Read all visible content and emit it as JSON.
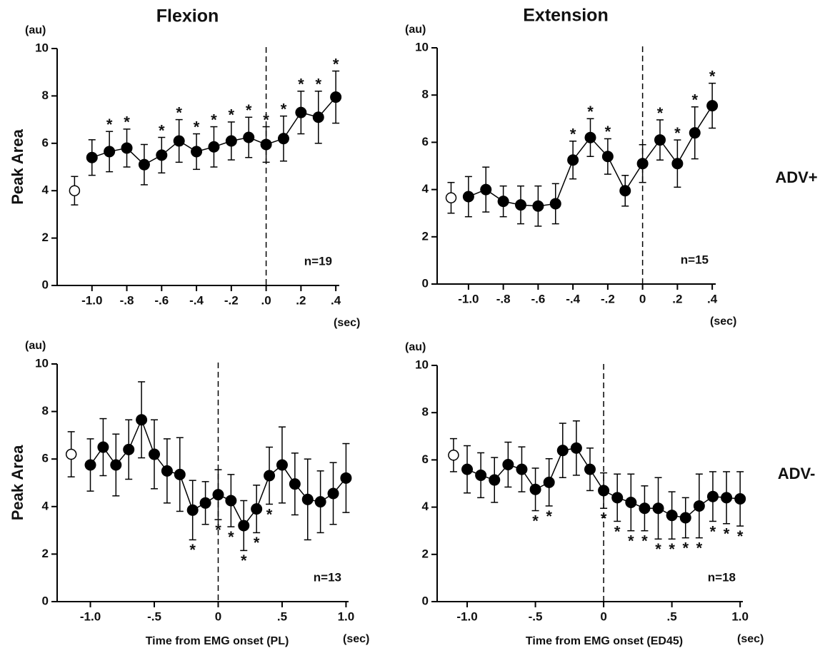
{
  "chart_data": [
    {
      "type": "errorbar-line",
      "title": "Flexion",
      "ylabel": "Peak Area",
      "yunit": "(au)",
      "xunit": "(sec)",
      "n_label": "n=19",
      "x": [
        -1.0,
        -0.9,
        -0.8,
        -0.7,
        -0.6,
        -0.5,
        -0.4,
        -0.3,
        -0.2,
        -0.1,
        0,
        0.1,
        0.2,
        0.3,
        0.4
      ],
      "values": [
        5.4,
        5.65,
        5.8,
        5.1,
        5.5,
        6.1,
        5.65,
        5.85,
        6.1,
        6.25,
        5.95,
        6.2,
        7.3,
        7.1,
        7.95
      ],
      "errors": [
        0.75,
        0.85,
        0.8,
        0.85,
        0.75,
        0.9,
        0.75,
        0.85,
        0.8,
        0.85,
        0.75,
        0.95,
        0.9,
        1.1,
        1.1
      ],
      "baseline": {
        "x": -1.1,
        "value": 4.0,
        "error": 0.6
      },
      "annotations": [
        {
          "x": -0.9,
          "text": "*"
        },
        {
          "x": -0.8,
          "text": "*"
        },
        {
          "x": -0.6,
          "text": "*"
        },
        {
          "x": -0.5,
          "text": "*"
        },
        {
          "x": -0.4,
          "text": "*"
        },
        {
          "x": -0.3,
          "text": "*"
        },
        {
          "x": -0.2,
          "text": "*"
        },
        {
          "x": -0.1,
          "text": "*"
        },
        {
          "x": 0,
          "text": "*"
        },
        {
          "x": 0.1,
          "text": "*"
        },
        {
          "x": 0.2,
          "text": "*"
        },
        {
          "x": 0.3,
          "text": "*"
        },
        {
          "x": 0.4,
          "text": "*"
        }
      ],
      "annotation_side": "above",
      "vline": 0,
      "xlim": [
        -1.2,
        0.42
      ],
      "ylim": [
        0,
        10
      ],
      "xticks": [
        {
          "value": -1.0,
          "label": "-1.0"
        },
        {
          "value": -0.8,
          "label": "-.8"
        },
        {
          "value": -0.6,
          "label": "-.6"
        },
        {
          "value": -0.4,
          "label": "-.4"
        },
        {
          "value": -0.2,
          "label": "-.2"
        },
        {
          "value": 0,
          "label": ".0"
        },
        {
          "value": 0.2,
          "label": ".2"
        },
        {
          "value": 0.4,
          "label": ".4"
        }
      ],
      "yticks": [
        0,
        2,
        4,
        6,
        8,
        10
      ]
    },
    {
      "type": "errorbar-line",
      "title": "Extension",
      "yunit": "(au)",
      "xunit": "(sec)",
      "n_label": "n=15",
      "x": [
        -1.0,
        -0.9,
        -0.8,
        -0.7,
        -0.6,
        -0.5,
        -0.4,
        -0.3,
        -0.2,
        -0.1,
        0,
        0.1,
        0.2,
        0.3,
        0.4
      ],
      "values": [
        3.7,
        4.0,
        3.5,
        3.35,
        3.3,
        3.4,
        5.25,
        6.2,
        5.4,
        3.95,
        5.1,
        6.1,
        5.1,
        6.4,
        7.55
      ],
      "errors": [
        0.85,
        0.95,
        0.65,
        0.8,
        0.85,
        0.85,
        0.8,
        0.8,
        0.75,
        0.65,
        0.8,
        0.85,
        1.0,
        1.1,
        0.95
      ],
      "baseline": {
        "x": -1.1,
        "value": 3.65,
        "error": 0.65
      },
      "annotations": [
        {
          "x": -0.4,
          "text": "*"
        },
        {
          "x": -0.3,
          "text": "*"
        },
        {
          "x": -0.2,
          "text": "*"
        },
        {
          "x": 0.1,
          "text": "*"
        },
        {
          "x": 0.2,
          "text": "*"
        },
        {
          "x": 0.3,
          "text": "*"
        },
        {
          "x": 0.4,
          "text": "*"
        }
      ],
      "annotation_side": "above",
      "vline": 0,
      "xlim": [
        -1.18,
        0.42
      ],
      "ylim": [
        0,
        10
      ],
      "xticks": [
        {
          "value": -1.0,
          "label": "-1.0"
        },
        {
          "value": -0.8,
          "label": "-.8"
        },
        {
          "value": -0.6,
          "label": "-.6"
        },
        {
          "value": -0.4,
          "label": "-.4"
        },
        {
          "value": -0.2,
          "label": "-.2"
        },
        0,
        {
          "value": 0.2,
          "label": ".2"
        },
        {
          "value": 0.4,
          "label": ".4"
        }
      ],
      "yticks": [
        0,
        2,
        4,
        6,
        8,
        10
      ]
    },
    {
      "type": "errorbar-line",
      "ylabel": "Peak Area",
      "yunit": "(au)",
      "xunit": "(sec)",
      "n_label": "n=13",
      "xlabel": "Time from EMG onset (PL)",
      "x": [
        -1.0,
        -0.9,
        -0.8,
        -0.7,
        -0.6,
        -0.5,
        -0.4,
        -0.3,
        -0.2,
        -0.1,
        0,
        0.1,
        0.2,
        0.3,
        0.4,
        0.5,
        0.6,
        0.7,
        0.8,
        0.9,
        1.0
      ],
      "values": [
        5.75,
        6.5,
        5.75,
        6.4,
        7.65,
        6.2,
        5.5,
        5.35,
        3.85,
        4.15,
        4.5,
        4.25,
        3.2,
        3.9,
        5.3,
        5.75,
        4.95,
        4.3,
        4.2,
        4.55,
        5.2
      ],
      "errors": [
        1.1,
        1.2,
        1.3,
        1.25,
        1.6,
        1.45,
        1.35,
        1.55,
        1.25,
        0.9,
        1.05,
        1.1,
        1.05,
        1.0,
        1.2,
        1.6,
        1.3,
        1.7,
        1.3,
        1.3,
        1.45
      ],
      "baseline": {
        "x": -1.15,
        "value": 6.2,
        "error": 0.95
      },
      "annotations": [
        {
          "x": -0.2,
          "text": "*"
        },
        {
          "x": 0,
          "text": "*"
        },
        {
          "x": 0.1,
          "text": "*"
        },
        {
          "x": 0.2,
          "text": "*"
        },
        {
          "x": 0.3,
          "text": "*"
        },
        {
          "x": 0.4,
          "text": "*"
        }
      ],
      "annotation_side": "below",
      "vline": 0,
      "xlim": [
        -1.26,
        1.02
      ],
      "ylim": [
        0,
        10
      ],
      "xticks": [
        {
          "value": -1.0,
          "label": "-1.0"
        },
        {
          "value": -0.5,
          "label": "-.5"
        },
        0,
        {
          "value": 0.5,
          "label": ".5"
        },
        {
          "value": 1.0,
          "label": "1.0"
        }
      ],
      "yticks": [
        0,
        2,
        4,
        6,
        8,
        10
      ]
    },
    {
      "type": "errorbar-line",
      "yunit": "(au)",
      "xunit": "(sec)",
      "n_label": "n=18",
      "xlabel": "Time from EMG onset (ED45)",
      "x": [
        -1.0,
        -0.9,
        -0.8,
        -0.7,
        -0.6,
        -0.5,
        -0.4,
        -0.3,
        -0.2,
        -0.1,
        0,
        0.1,
        0.2,
        0.3,
        0.4,
        0.5,
        0.6,
        0.7,
        0.8,
        0.9,
        1.0
      ],
      "values": [
        5.6,
        5.35,
        5.15,
        5.8,
        5.6,
        4.75,
        5.05,
        6.4,
        6.5,
        5.6,
        4.7,
        4.4,
        4.2,
        3.95,
        3.95,
        3.65,
        3.55,
        4.05,
        4.45,
        4.4,
        4.35
      ],
      "errors": [
        1.0,
        0.95,
        0.95,
        0.95,
        0.95,
        0.9,
        1.0,
        1.15,
        1.15,
        0.9,
        0.75,
        1.0,
        1.2,
        0.95,
        1.3,
        1.0,
        0.85,
        1.35,
        1.05,
        1.1,
        1.15
      ],
      "baseline": {
        "x": -1.1,
        "value": 6.2,
        "error": 0.7
      },
      "annotations": [
        {
          "x": -0.5,
          "text": "*"
        },
        {
          "x": -0.4,
          "text": "*"
        },
        {
          "x": 0,
          "text": "*"
        },
        {
          "x": 0.1,
          "text": "*"
        },
        {
          "x": 0.2,
          "text": "*"
        },
        {
          "x": 0.3,
          "text": "*"
        },
        {
          "x": 0.4,
          "text": "*"
        },
        {
          "x": 0.5,
          "text": "*"
        },
        {
          "x": 0.6,
          "text": "*"
        },
        {
          "x": 0.7,
          "text": "*"
        },
        {
          "x": 0.8,
          "text": "*"
        },
        {
          "x": 0.9,
          "text": "*"
        },
        {
          "x": 1.0,
          "text": "*"
        }
      ],
      "annotation_side": "below",
      "vline": 0,
      "xlim": [
        -1.22,
        1.02
      ],
      "ylim": [
        0,
        10
      ],
      "xticks": [
        {
          "value": -1.0,
          "label": "-1.0"
        },
        {
          "value": -0.5,
          "label": "-.5"
        },
        0,
        {
          "value": 0.5,
          "label": ".5"
        },
        {
          "value": 1.0,
          "label": "1.0"
        }
      ],
      "yticks": [
        0,
        2,
        4,
        6,
        8,
        10
      ]
    }
  ],
  "row_labels": [
    "ADV+",
    "ADV-"
  ]
}
